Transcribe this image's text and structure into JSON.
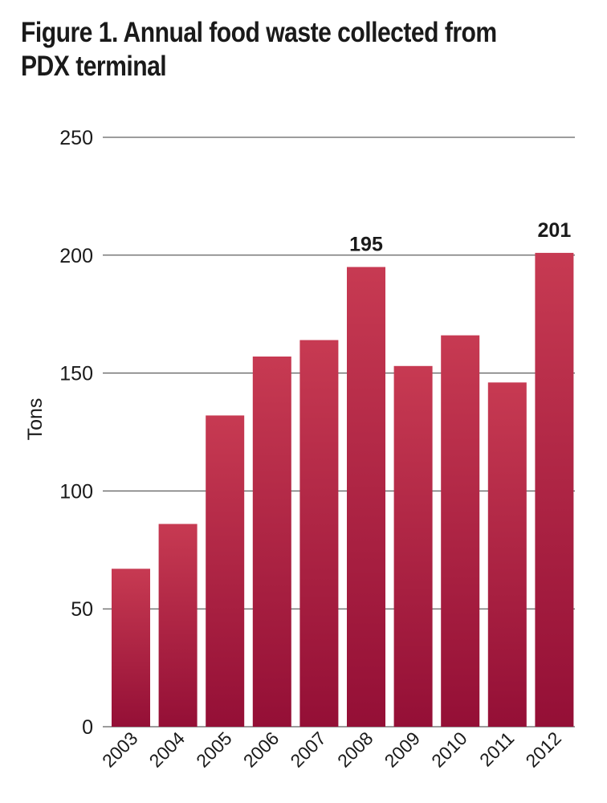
{
  "chart_data": {
    "type": "bar",
    "title_lines": [
      "Figure 1. Annual food waste collected from",
      "PDX terminal"
    ],
    "xlabel": "",
    "ylabel": "Tons",
    "categories": [
      "2003",
      "2004",
      "2005",
      "2006",
      "2007",
      "2008",
      "2009",
      "2010",
      "2011",
      "2012"
    ],
    "values": [
      67,
      86,
      132,
      157,
      164,
      195,
      153,
      166,
      146,
      201
    ],
    "data_labels": [
      null,
      null,
      null,
      null,
      null,
      "195",
      null,
      null,
      null,
      "201"
    ],
    "ylim": [
      0,
      250
    ],
    "yticks": [
      0,
      50,
      100,
      150,
      200,
      250
    ],
    "grid": true,
    "legend": "none",
    "colors": {
      "bar_top": "#c73a52",
      "bar_bottom": "#940f36",
      "grid": "#3a3a3a",
      "text": "#1a1a1a"
    }
  }
}
